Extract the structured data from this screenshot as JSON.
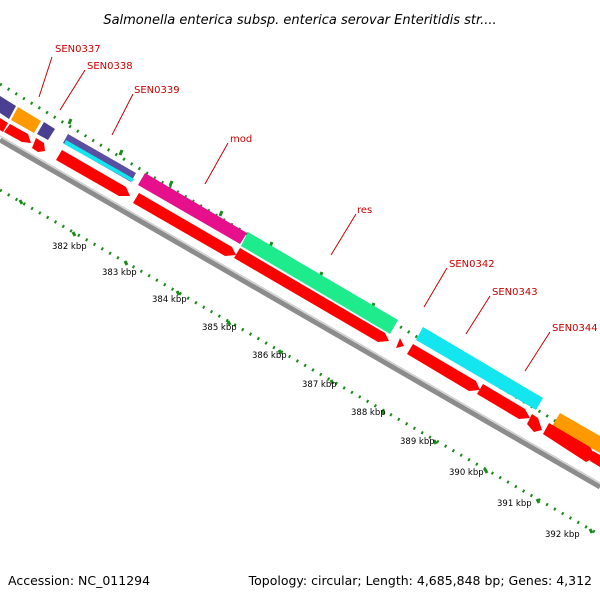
{
  "title": "Salmonella enterica subsp. enterica serovar Enteritidis str....",
  "accession": "Accession: NC_011294",
  "topology": "Topology: circular; Length: 4,685,848 bp; Genes: 4,312",
  "gene_labels": [
    {
      "id": "sen0337",
      "text": "SEN0337"
    },
    {
      "id": "sen0338",
      "text": "SEN0338"
    },
    {
      "id": "sen0339",
      "text": "SEN0339"
    },
    {
      "id": "mod",
      "text": "mod"
    },
    {
      "id": "res",
      "text": "res"
    },
    {
      "id": "sen0342",
      "text": "SEN0342"
    },
    {
      "id": "sen0343",
      "text": "SEN0343"
    },
    {
      "id": "sen0344",
      "text": "SEN0344"
    }
  ],
  "kbp_labels": [
    "382 kbp",
    "383 kbp",
    "384 kbp",
    "385 kbp",
    "386 kbp",
    "387 kbp",
    "388 kbp",
    "389 kbp",
    "390 kbp",
    "391 kbp",
    "392 kbp"
  ],
  "colors": {
    "gene_strand": "#ff0000",
    "label_text": "#cc0000",
    "backbone": "#8c8c8c",
    "tick": "#1a8c1a",
    "purple": "#4b3f91",
    "orange": "#ff9900",
    "magenta": "#e60f8c",
    "green": "#1eeb8c",
    "cyan": "#14e6f0"
  }
}
